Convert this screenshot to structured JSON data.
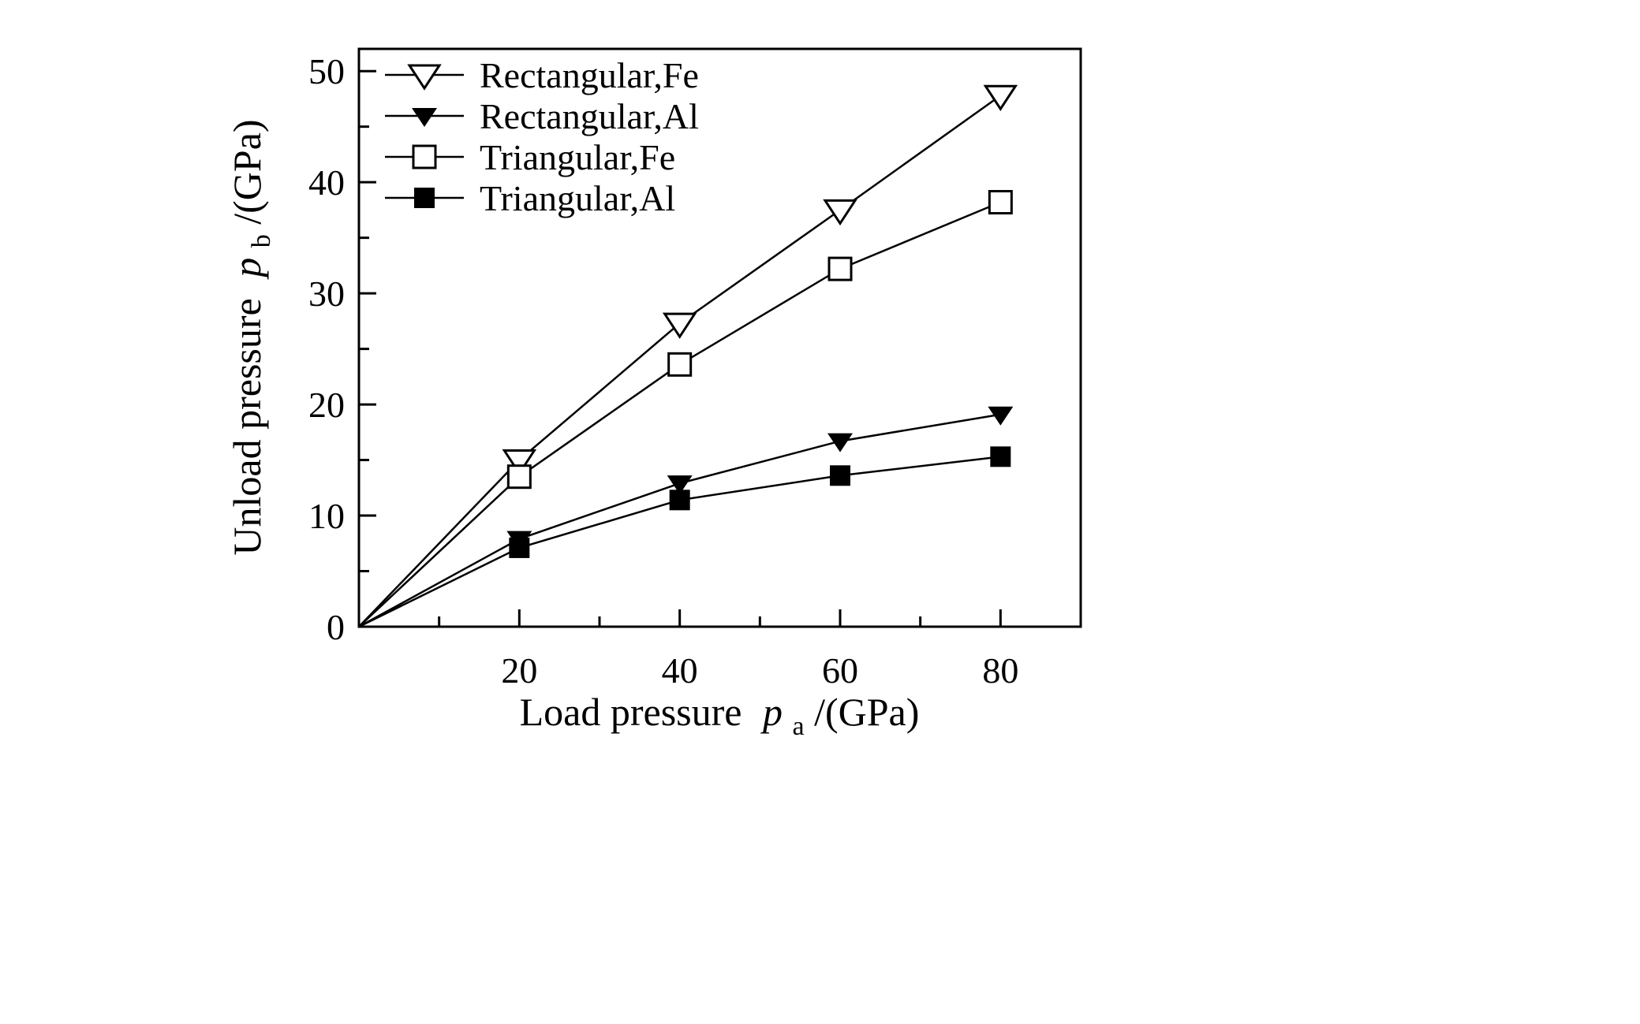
{
  "page": {
    "background": "#ffffff",
    "axis_color": "#000000"
  },
  "chart_data": {
    "type": "line",
    "title": "",
    "xlabel": "Load pressure p_a/(GPa)",
    "ylabel": "Unload pressure p_b/(GPa)",
    "xlim": [
      0,
      90
    ],
    "ylim": [
      0,
      52
    ],
    "x_major_ticks": [
      20,
      40,
      60,
      80
    ],
    "x_minor_ticks": [
      10,
      30,
      50,
      70,
      90
    ],
    "y_major_ticks": [
      0,
      10,
      20,
      30,
      40,
      50
    ],
    "y_minor_ticks": [
      5,
      15,
      25,
      35,
      45
    ],
    "grid": false,
    "legend_position": "top-left-inside",
    "line_color": "#000000",
    "x": [
      0,
      20,
      40,
      60,
      80
    ],
    "series": [
      {
        "name": "Rectangular,Fe",
        "marker": "triangle-down-open",
        "values": [
          0,
          15.0,
          27.3,
          37.5,
          47.8
        ]
      },
      {
        "name": "Rectangular,Al",
        "marker": "triangle-down-filled",
        "values": [
          0,
          7.9,
          12.9,
          16.7,
          19.1
        ]
      },
      {
        "name": "Triangular,Fe",
        "marker": "square-open",
        "values": [
          0,
          13.5,
          23.6,
          32.2,
          38.2
        ]
      },
      {
        "name": "Triangular,Al",
        "marker": "square-filled",
        "values": [
          0,
          7.1,
          11.4,
          13.6,
          15.3
        ]
      }
    ]
  },
  "labels": {
    "x_prefix": "Load pressure",
    "x_symbol": "p",
    "x_sub": "a",
    "x_suffix": "/(GPa)",
    "y_prefix": "Unload pressure",
    "y_symbol": "p",
    "y_sub": "b",
    "y_suffix": "/(GPa)"
  }
}
